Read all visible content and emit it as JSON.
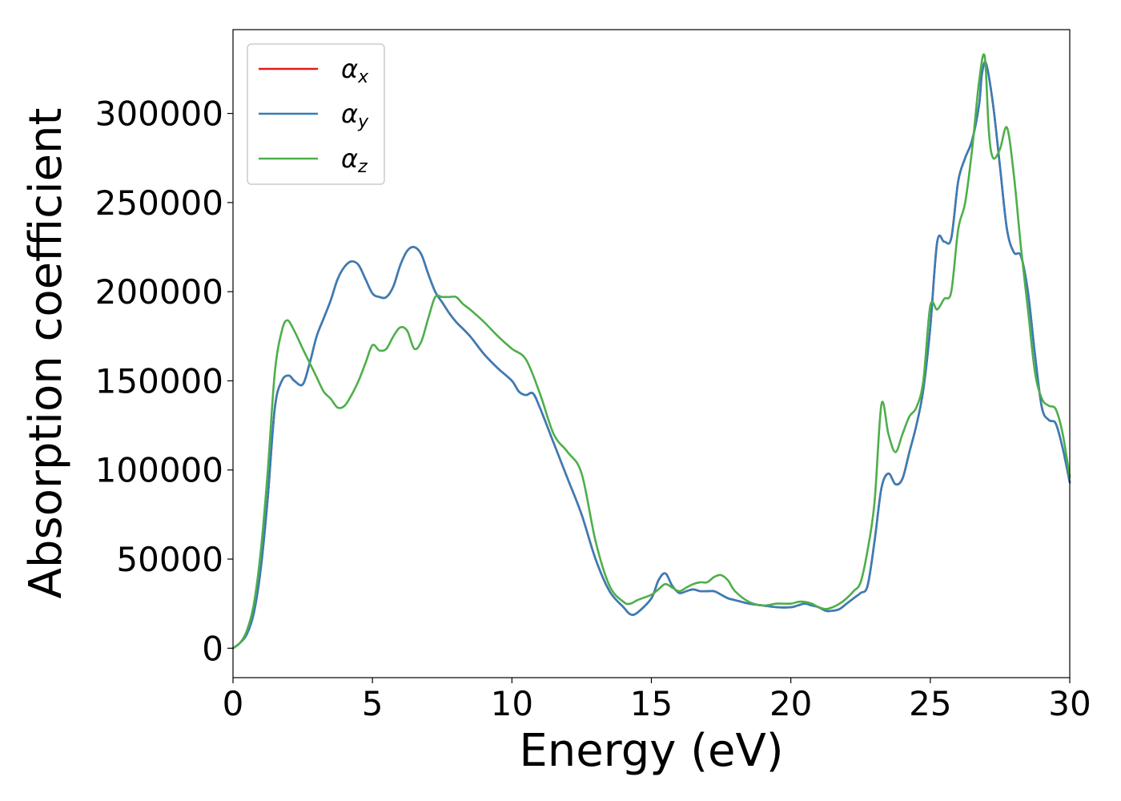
{
  "chart_data": {
    "type": "line",
    "title": "",
    "xlabel": "Energy (eV)",
    "ylabel": "Absorption coefficient",
    "xlim": [
      0,
      30
    ],
    "ylim": [
      -16500,
      347000
    ],
    "xticks": [
      0,
      5,
      10,
      15,
      20,
      25,
      30
    ],
    "yticks": [
      0,
      50000,
      100000,
      150000,
      200000,
      250000,
      300000
    ],
    "grid": false,
    "legend": {
      "position": "top-left",
      "entries": [
        "α_x",
        "α_y",
        "α_z"
      ]
    },
    "series": [
      {
        "name": "α_x",
        "color": "#e41a1c",
        "x": [
          0,
          0.25,
          0.5,
          0.75,
          1.0,
          1.25,
          1.5,
          1.75,
          2.0,
          2.2,
          2.5,
          2.75,
          3.0,
          3.25,
          3.5,
          3.75,
          4.0,
          4.25,
          4.5,
          4.75,
          5.0,
          5.25,
          5.5,
          5.75,
          6.0,
          6.25,
          6.5,
          6.75,
          7.0,
          7.25,
          7.5,
          7.75,
          8.0,
          8.5,
          9.0,
          9.5,
          10.0,
          10.25,
          10.5,
          10.75,
          11.0,
          11.5,
          12.0,
          12.5,
          13.0,
          13.5,
          14.0,
          14.25,
          14.5,
          15.0,
          15.25,
          15.5,
          15.75,
          16.0,
          16.25,
          16.5,
          16.75,
          17.0,
          17.25,
          17.5,
          17.75,
          18.0,
          18.5,
          19.0,
          19.5,
          20.0,
          20.25,
          20.5,
          20.75,
          21.0,
          21.25,
          21.5,
          21.75,
          22.0,
          22.25,
          22.5,
          22.75,
          23.0,
          23.25,
          23.5,
          23.75,
          24.0,
          24.25,
          24.5,
          24.75,
          25.0,
          25.25,
          25.5,
          25.75,
          26.0,
          26.25,
          26.5,
          26.75,
          26.85,
          27.0,
          27.25,
          27.5,
          27.75,
          28.0,
          28.25,
          28.5,
          28.75,
          29.0,
          29.25,
          29.5,
          29.75,
          30.0
        ],
        "y": [
          0,
          3000,
          8000,
          20000,
          45000,
          85000,
          135000,
          150000,
          153000,
          150000,
          148000,
          160000,
          175000,
          185000,
          195000,
          207000,
          214000,
          217000,
          215000,
          207000,
          199000,
          197000,
          197000,
          203000,
          215000,
          223000,
          225000,
          221000,
          210000,
          200000,
          194000,
          188000,
          183000,
          175000,
          165000,
          157000,
          150000,
          144000,
          142000,
          143000,
          135000,
          115000,
          95000,
          75000,
          50000,
          32000,
          23000,
          19000,
          20000,
          28000,
          38000,
          42000,
          35000,
          31000,
          32000,
          33000,
          32000,
          32000,
          32000,
          30000,
          28000,
          27000,
          25000,
          24000,
          23000,
          23000,
          24000,
          25000,
          24000,
          23000,
          21000,
          21000,
          22000,
          25000,
          28000,
          31000,
          35000,
          60000,
          90000,
          98000,
          92000,
          95000,
          110000,
          125000,
          145000,
          180000,
          228000,
          228000,
          230000,
          262000,
          275000,
          285000,
          305000,
          322000,
          328000,
          305000,
          270000,
          235000,
          222000,
          220000,
          200000,
          165000,
          135000,
          128000,
          126000,
          112000,
          93000
        ]
      },
      {
        "name": "α_y",
        "color": "#377eb8",
        "x": [
          0,
          0.25,
          0.5,
          0.75,
          1.0,
          1.25,
          1.5,
          1.75,
          2.0,
          2.2,
          2.5,
          2.75,
          3.0,
          3.25,
          3.5,
          3.75,
          4.0,
          4.25,
          4.5,
          4.75,
          5.0,
          5.25,
          5.5,
          5.75,
          6.0,
          6.25,
          6.5,
          6.75,
          7.0,
          7.25,
          7.5,
          7.75,
          8.0,
          8.5,
          9.0,
          9.5,
          10.0,
          10.25,
          10.5,
          10.75,
          11.0,
          11.5,
          12.0,
          12.5,
          13.0,
          13.5,
          14.0,
          14.25,
          14.5,
          15.0,
          15.25,
          15.5,
          15.75,
          16.0,
          16.25,
          16.5,
          16.75,
          17.0,
          17.25,
          17.5,
          17.75,
          18.0,
          18.5,
          19.0,
          19.5,
          20.0,
          20.25,
          20.5,
          20.75,
          21.0,
          21.25,
          21.5,
          21.75,
          22.0,
          22.25,
          22.5,
          22.75,
          23.0,
          23.25,
          23.5,
          23.75,
          24.0,
          24.25,
          24.5,
          24.75,
          25.0,
          25.25,
          25.5,
          25.75,
          26.0,
          26.25,
          26.5,
          26.75,
          26.85,
          27.0,
          27.25,
          27.5,
          27.75,
          28.0,
          28.25,
          28.5,
          28.75,
          29.0,
          29.25,
          29.5,
          29.75,
          30.0
        ],
        "y": [
          0,
          3000,
          8000,
          20000,
          45000,
          85000,
          135000,
          150000,
          153000,
          150000,
          148000,
          160000,
          175000,
          185000,
          195000,
          207000,
          214000,
          217000,
          215000,
          207000,
          199000,
          197000,
          197000,
          203000,
          215000,
          223000,
          225000,
          221000,
          210000,
          200000,
          194000,
          188000,
          183000,
          175000,
          165000,
          157000,
          150000,
          144000,
          142000,
          143000,
          135000,
          115000,
          95000,
          75000,
          50000,
          32000,
          23000,
          19000,
          20000,
          28000,
          38000,
          42000,
          35000,
          31000,
          32000,
          33000,
          32000,
          32000,
          32000,
          30000,
          28000,
          27000,
          25000,
          24000,
          23000,
          23000,
          24000,
          25000,
          24000,
          23000,
          21000,
          21000,
          22000,
          25000,
          28000,
          31000,
          35000,
          60000,
          90000,
          98000,
          92000,
          95000,
          110000,
          125000,
          145000,
          180000,
          228000,
          228000,
          230000,
          262000,
          275000,
          285000,
          305000,
          322000,
          328000,
          305000,
          270000,
          235000,
          222000,
          220000,
          200000,
          165000,
          135000,
          128000,
          126000,
          112000,
          93000
        ]
      },
      {
        "name": "α_z",
        "color": "#4daf4a",
        "x": [
          0,
          0.25,
          0.5,
          0.75,
          1.0,
          1.25,
          1.5,
          1.75,
          1.95,
          2.2,
          2.5,
          2.75,
          3.0,
          3.25,
          3.5,
          3.75,
          4.0,
          4.25,
          4.5,
          4.75,
          5.0,
          5.25,
          5.5,
          5.75,
          6.0,
          6.25,
          6.5,
          6.75,
          7.0,
          7.25,
          7.5,
          7.75,
          8.0,
          8.25,
          8.5,
          9.0,
          9.5,
          10.0,
          10.5,
          11.0,
          11.5,
          12.0,
          12.5,
          13.0,
          13.5,
          14.0,
          14.25,
          14.5,
          15.0,
          15.25,
          15.5,
          15.75,
          16.0,
          16.25,
          16.5,
          16.75,
          17.0,
          17.25,
          17.5,
          17.75,
          18.0,
          18.5,
          19.0,
          19.5,
          20.0,
          20.25,
          20.5,
          20.75,
          21.0,
          21.25,
          21.5,
          21.75,
          22.0,
          22.25,
          22.5,
          22.75,
          23.0,
          23.25,
          23.5,
          23.75,
          24.0,
          24.25,
          24.5,
          24.75,
          25.0,
          25.25,
          25.5,
          25.75,
          26.0,
          26.25,
          26.5,
          26.75,
          26.95,
          27.1,
          27.25,
          27.5,
          27.75,
          28.0,
          28.25,
          28.5,
          28.75,
          29.0,
          29.25,
          29.5,
          29.75,
          30.0
        ],
        "y": [
          0,
          3000,
          10000,
          25000,
          55000,
          100000,
          155000,
          178000,
          184000,
          178000,
          168000,
          160000,
          152000,
          144000,
          140000,
          135000,
          136000,
          142000,
          150000,
          160000,
          170000,
          167000,
          168000,
          175000,
          180000,
          178000,
          168000,
          172000,
          185000,
          197000,
          197000,
          197000,
          197000,
          193000,
          190000,
          183000,
          175000,
          168000,
          162000,
          143000,
          120000,
          110000,
          98000,
          60000,
          35000,
          26000,
          25000,
          27000,
          30000,
          33000,
          36000,
          34000,
          32000,
          34000,
          36000,
          37000,
          37000,
          40000,
          41000,
          38000,
          32000,
          26000,
          24000,
          25000,
          25000,
          26000,
          26000,
          25000,
          23000,
          22000,
          23000,
          25000,
          28000,
          32000,
          37000,
          55000,
          82000,
          137000,
          120000,
          110000,
          120000,
          130000,
          135000,
          150000,
          192000,
          190000,
          196000,
          200000,
          235000,
          250000,
          280000,
          318000,
          332000,
          290000,
          275000,
          280000,
          292000,
          265000,
          225000,
          190000,
          155000,
          140000,
          136000,
          134000,
          120000,
          96000
        ]
      }
    ]
  }
}
